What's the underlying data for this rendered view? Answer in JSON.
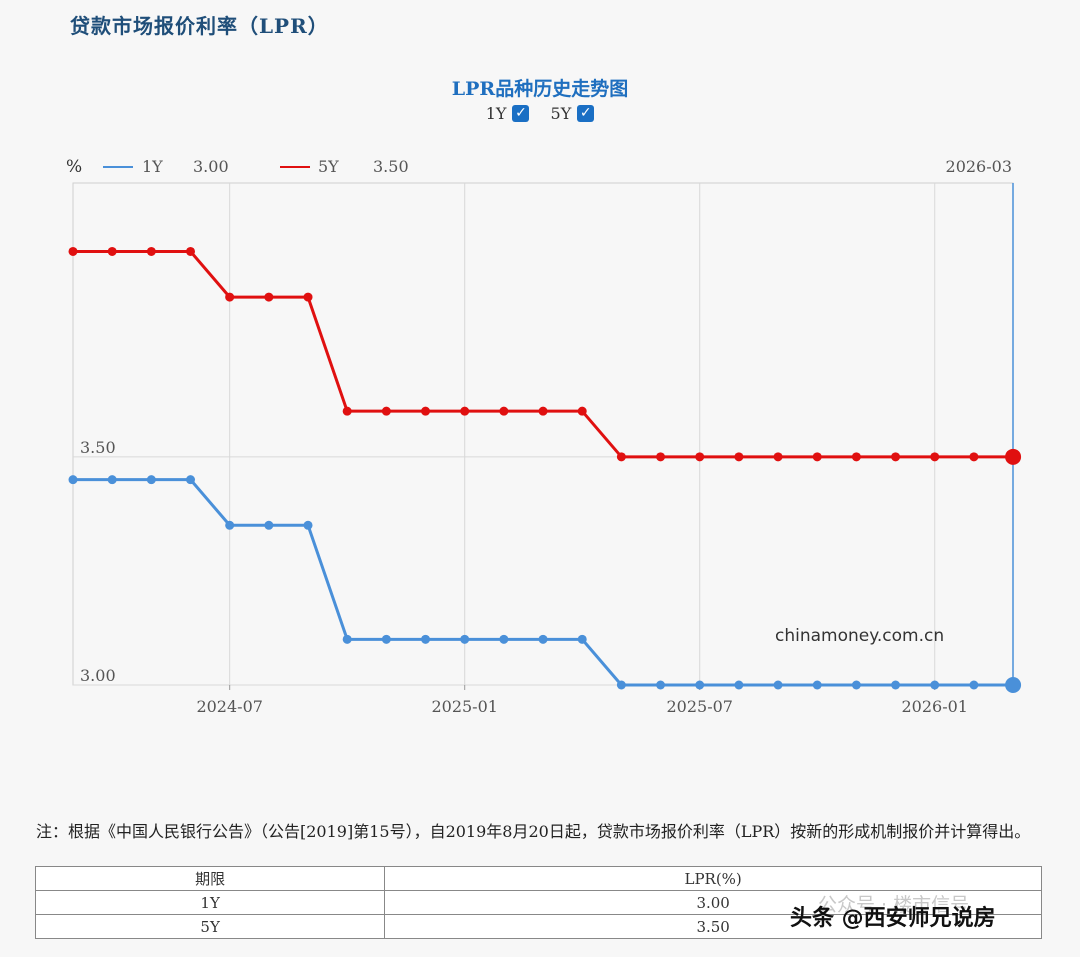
{
  "page": {
    "title": "贷款市场报价利率（LPR）",
    "note": "注：根据《中国人民银行公告》（公告[2019]第15号），自2019年8月20日起，贷款市场报价利率（LPR）按新的形成机制报价并计算得出。"
  },
  "legend": {
    "unit": "%",
    "y1_label": "1Y",
    "y1_value": "3.00",
    "y5_label": "5Y",
    "y5_value": "3.50",
    "date": "2026-03"
  },
  "toggles": [
    {
      "label": "1Y",
      "checked": true
    },
    {
      "label": "5Y",
      "checked": true
    }
  ],
  "table": {
    "headers": [
      "期限",
      "LPR(%)"
    ],
    "rows": [
      [
        "1Y",
        "3.00"
      ],
      [
        "5Y",
        "3.50"
      ]
    ]
  },
  "watermarks": {
    "site": "chinamoney.com.cn",
    "credit": "头条 @西安师兄说房",
    "faint": "公众号 · 楼市信号"
  },
  "colors": {
    "series_1y": "#4a90d9",
    "series_5y": "#e01010",
    "title": "#1f6fbf"
  },
  "chart_data": {
    "type": "line",
    "title": "LPR品种历史走势图",
    "x_tick_labels": [
      "2024-07",
      "2025-01",
      "2025-07",
      "2026-01"
    ],
    "y_tick_labels": [
      "3.50",
      "3.00"
    ],
    "ylim": [
      3.0,
      4.1
    ],
    "x": [
      "2024-03",
      "2024-04",
      "2024-05",
      "2024-06",
      "2024-07",
      "2024-08",
      "2024-09",
      "2024-10",
      "2024-11",
      "2024-12",
      "2025-01",
      "2025-02",
      "2025-03",
      "2025-04",
      "2025-05",
      "2025-06",
      "2025-07",
      "2025-08",
      "2025-09",
      "2025-10",
      "2025-11",
      "2025-12",
      "2026-01",
      "2026-02",
      "2026-03"
    ],
    "series": [
      {
        "name": "1Y",
        "values": [
          3.45,
          3.45,
          3.45,
          3.45,
          3.35,
          3.35,
          3.35,
          3.1,
          3.1,
          3.1,
          3.1,
          3.1,
          3.1,
          3.1,
          3.0,
          3.0,
          3.0,
          3.0,
          3.0,
          3.0,
          3.0,
          3.0,
          3.0,
          3.0,
          3.0
        ]
      },
      {
        "name": "5Y",
        "values": [
          3.95,
          3.95,
          3.95,
          3.95,
          3.85,
          3.85,
          3.85,
          3.6,
          3.6,
          3.6,
          3.6,
          3.6,
          3.6,
          3.6,
          3.5,
          3.5,
          3.5,
          3.5,
          3.5,
          3.5,
          3.5,
          3.5,
          3.5,
          3.5,
          3.5
        ]
      }
    ],
    "grid": true
  }
}
